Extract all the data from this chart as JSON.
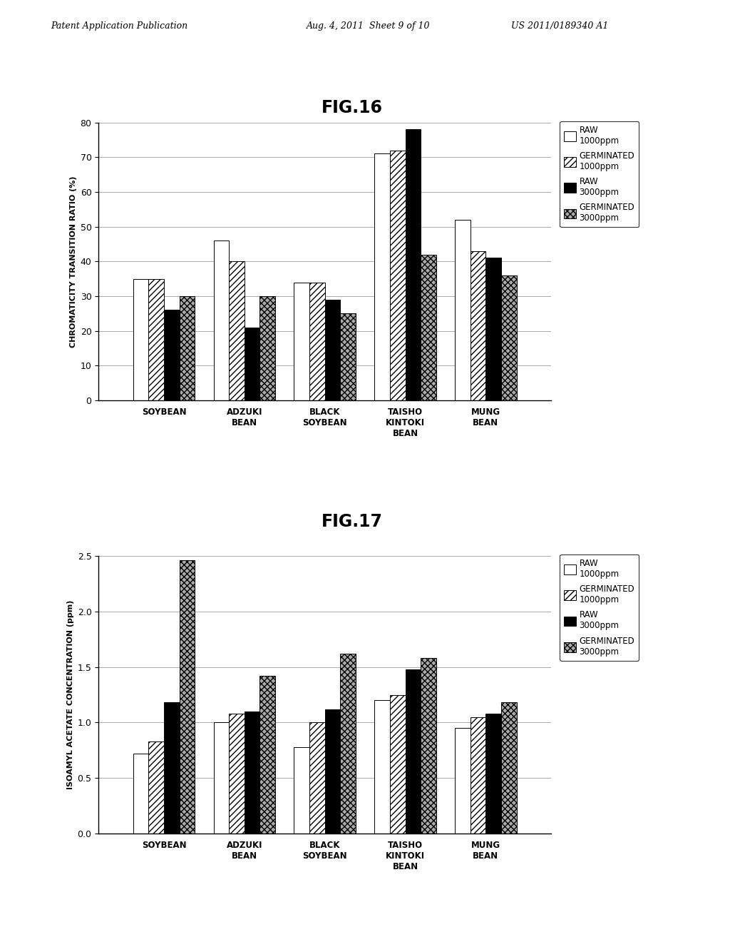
{
  "fig16": {
    "title": "FIG.16",
    "ylabel": "CHROMATICITY TRANSITION RATIO (%)",
    "ylim": [
      0,
      80
    ],
    "yticks": [
      0,
      10,
      20,
      30,
      40,
      50,
      60,
      70,
      80
    ],
    "categories": [
      "SOYBEAN",
      "ADZUKI\nBEAN",
      "BLACK\nSOYBEAN",
      "TAISHO\nKINTOKI\nBEAN",
      "MUNG\nBEAN"
    ],
    "series": {
      "RAW 1000ppm": [
        35,
        46,
        34,
        71,
        52
      ],
      "GERMINATED 1000ppm": [
        35,
        40,
        34,
        72,
        43
      ],
      "RAW 3000ppm": [
        26,
        21,
        29,
        78,
        41
      ],
      "GERMINATED 3000ppm": [
        30,
        30,
        25,
        42,
        36
      ]
    },
    "legend_labels": [
      "RAW\n1000ppm",
      "GERMINATED\n1000ppm",
      "RAW\n3000ppm",
      "GERMINATED\n3000ppm"
    ]
  },
  "fig17": {
    "title": "FIG.17",
    "ylabel": "ISOAMYL ACETATE CONCENTRATION (ppm)",
    "ylim": [
      0,
      2.5
    ],
    "yticks": [
      0.0,
      0.5,
      1.0,
      1.5,
      2.0,
      2.5
    ],
    "categories": [
      "SOYBEAN",
      "ADZUKI\nBEAN",
      "BLACK\nSOYBEAN",
      "TAISHO\nKINTOKI\nBEAN",
      "MUNG\nBEAN"
    ],
    "series": {
      "RAW 1000ppm": [
        0.72,
        1.0,
        0.78,
        1.2,
        0.95
      ],
      "GERMINATED 1000ppm": [
        0.83,
        1.08,
        1.0,
        1.25,
        1.05
      ],
      "RAW 3000ppm": [
        1.18,
        1.1,
        1.12,
        1.48,
        1.08
      ],
      "GERMINATED 3000ppm": [
        2.46,
        1.42,
        1.62,
        1.58,
        1.18
      ]
    },
    "legend_labels": [
      "RAW\n1000ppm",
      "GERMINATED\n1000ppm",
      "RAW\n3000ppm",
      "GERMINATED\n3000ppm"
    ]
  },
  "background_color": "#ffffff",
  "bar_colors": [
    "#ffffff",
    "#ffffff",
    "#000000",
    "#aaaaaa"
  ],
  "bar_edgecolors": [
    "#000000",
    "#000000",
    "#000000",
    "#000000"
  ],
  "hatch_patterns": [
    "",
    "////",
    "",
    "xxxx"
  ]
}
